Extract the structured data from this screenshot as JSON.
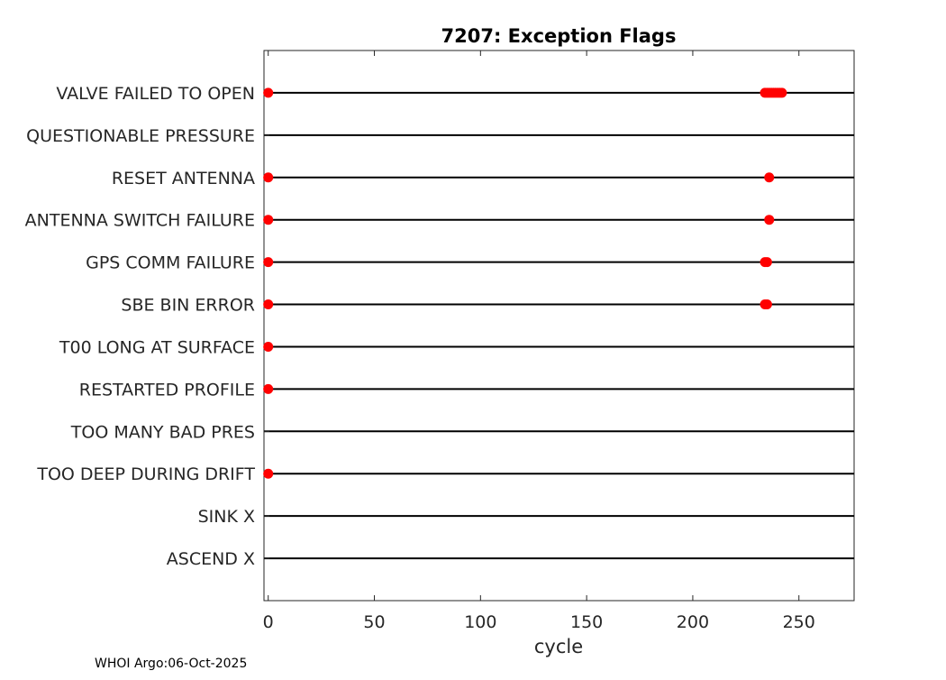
{
  "chart_data": {
    "type": "scatter",
    "title": "7207: Exception Flags",
    "xlabel": "cycle",
    "ylabel": "",
    "xlim": [
      -2,
      276
    ],
    "xticks": [
      0,
      50,
      100,
      150,
      200,
      250
    ],
    "grid": false,
    "categories": [
      "VALVE FAILED TO OPEN",
      "QUESTIONABLE PRESSURE",
      "RESET ANTENNA",
      "ANTENNA SWITCH FAILURE",
      "GPS COMM FAILURE",
      "SBE BIN ERROR",
      "T00 LONG AT SURFACE",
      "RESTARTED PROFILE",
      "TOO MANY BAD PRES",
      "TOO DEEP DURING DRIFT",
      "SINK X",
      "ASCEND X"
    ],
    "series": [
      {
        "name": "VALVE FAILED TO OPEN",
        "x": [
          0,
          234,
          235,
          236,
          237,
          238,
          239,
          240,
          241,
          242
        ]
      },
      {
        "name": "QUESTIONABLE PRESSURE",
        "x": []
      },
      {
        "name": "RESET ANTENNA",
        "x": [
          0,
          236
        ]
      },
      {
        "name": "ANTENNA SWITCH FAILURE",
        "x": [
          0,
          236
        ]
      },
      {
        "name": "GPS COMM FAILURE",
        "x": [
          0,
          234,
          235
        ]
      },
      {
        "name": "SBE BIN ERROR",
        "x": [
          0,
          234,
          235
        ]
      },
      {
        "name": "T00 LONG AT SURFACE",
        "x": [
          0
        ]
      },
      {
        "name": "RESTARTED PROFILE",
        "x": [
          0
        ]
      },
      {
        "name": "TOO MANY BAD PRES",
        "x": []
      },
      {
        "name": "TOO DEEP DURING DRIFT",
        "x": [
          0
        ]
      },
      {
        "name": "SINK X",
        "x": []
      },
      {
        "name": "ASCEND X",
        "x": []
      }
    ],
    "marker_color": "#ff0000",
    "line_color": "#000000"
  },
  "footer": "WHOI Argo:06-Oct-2025"
}
